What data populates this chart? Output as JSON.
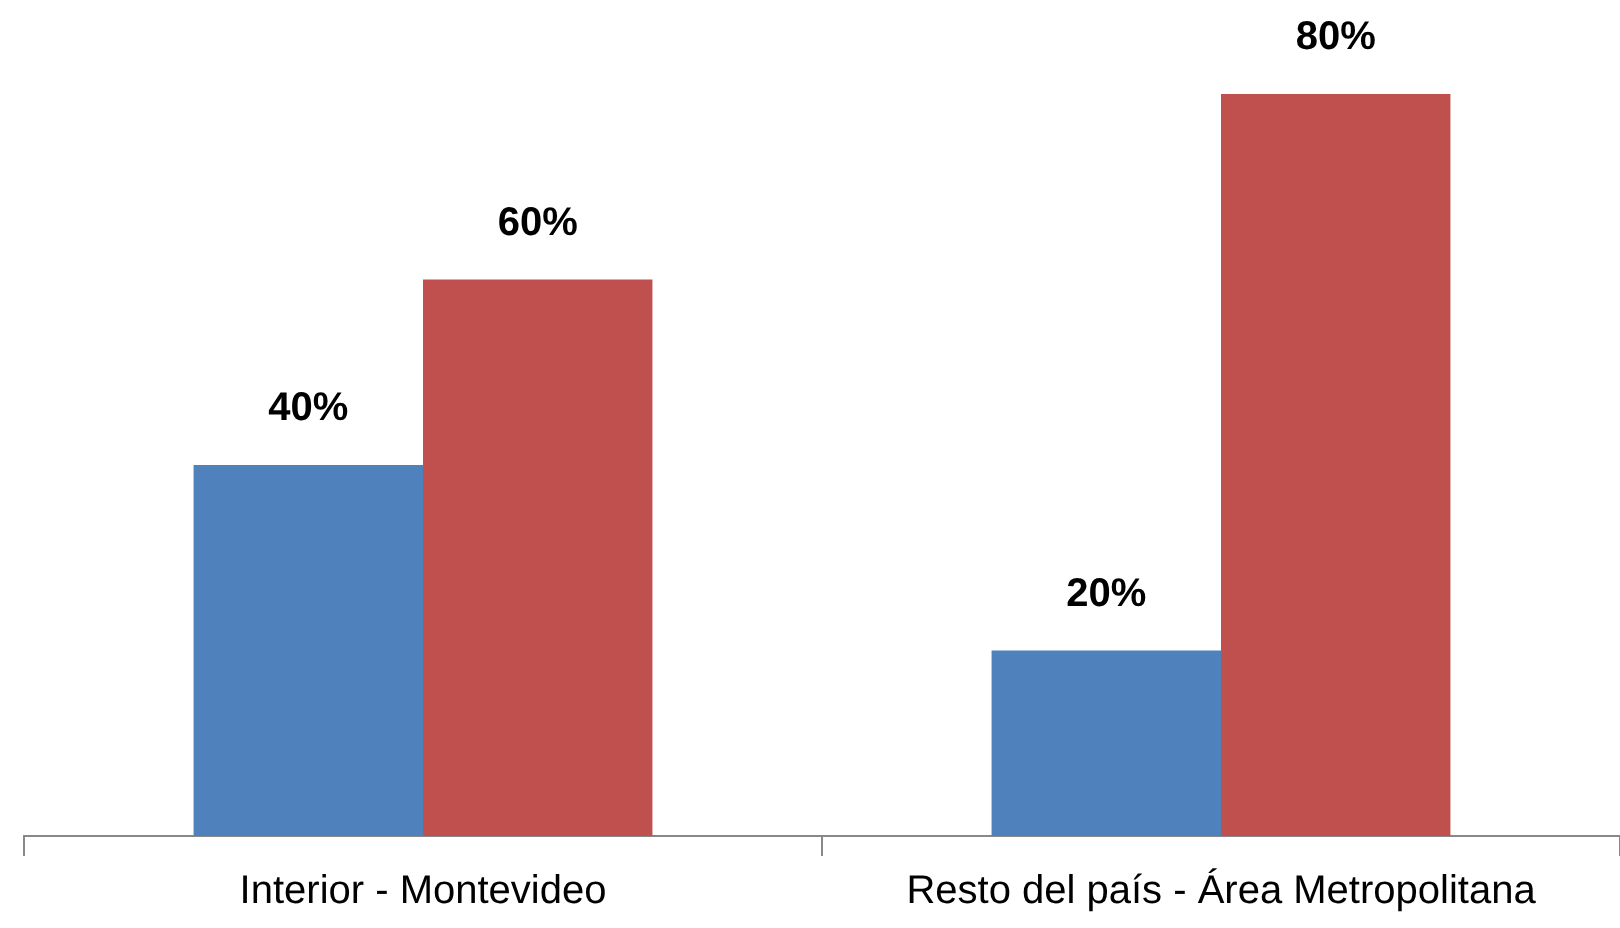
{
  "chart_data": {
    "type": "bar",
    "categories": [
      "Interior - Montevideo",
      "Resto del país - Área Metropolitana"
    ],
    "series": [
      {
        "color": "#4f81bd",
        "values": [
          40,
          20
        ],
        "value_labels": [
          "40%",
          "20%"
        ]
      },
      {
        "color": "#c0504d",
        "values": [
          60,
          80
        ],
        "value_labels": [
          "60%",
          "80%"
        ]
      }
    ]
  }
}
